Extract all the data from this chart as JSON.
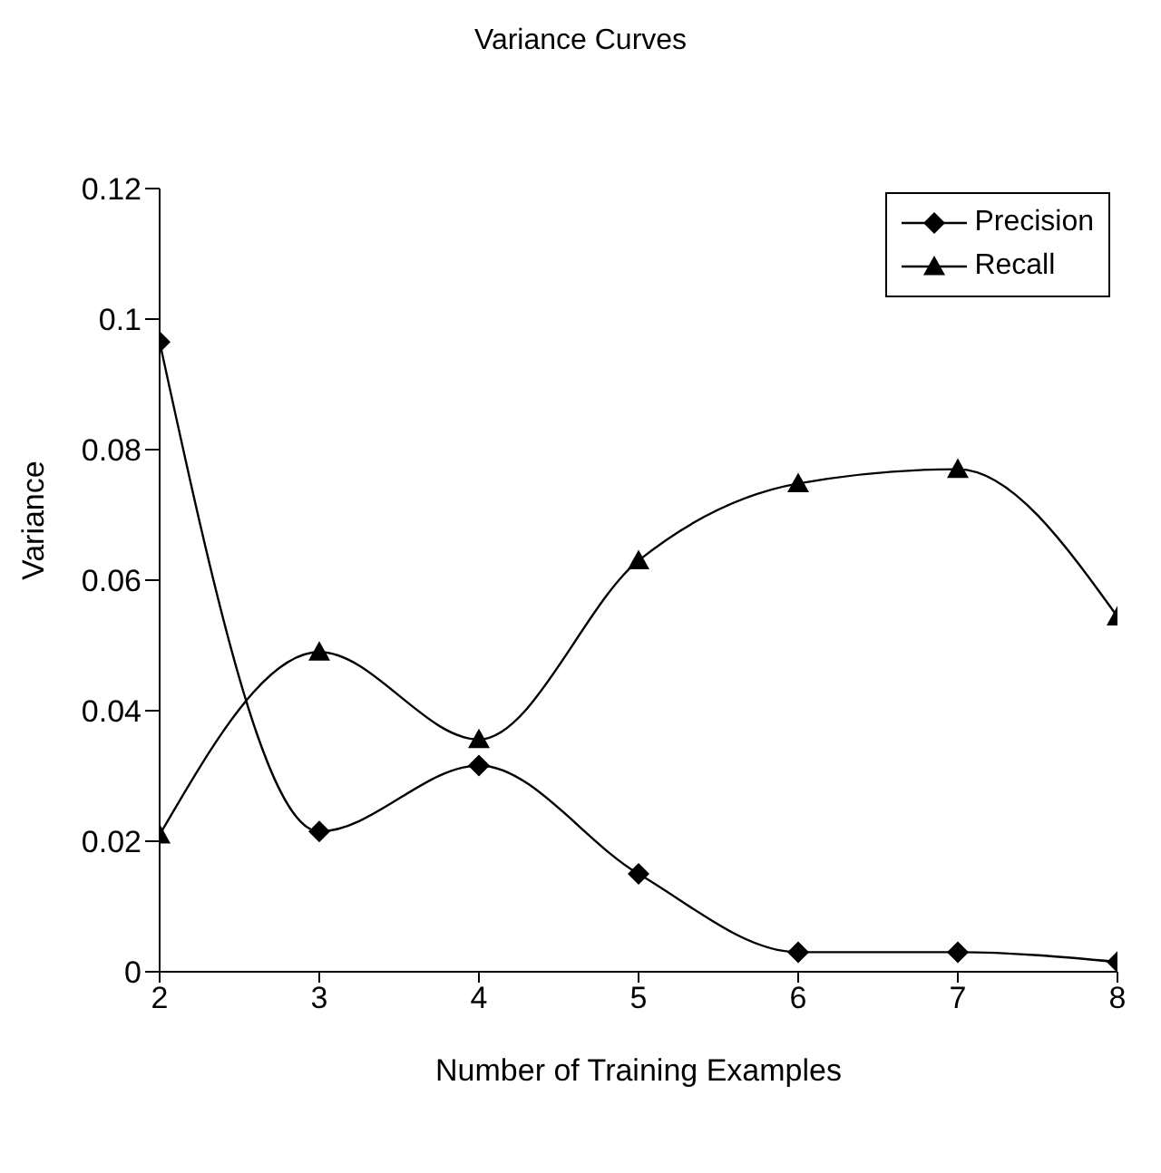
{
  "chart_data": {
    "type": "line",
    "title": "Variance Curves",
    "xlabel": "Number of Training Examples",
    "ylabel": "Variance",
    "x": [
      2,
      3,
      4,
      5,
      6,
      7,
      8
    ],
    "series": [
      {
        "name": "Precision",
        "color": "#000000",
        "marker": "diamond",
        "values": [
          0.0965,
          0.0215,
          0.0316,
          0.015,
          0.003,
          0.003,
          0.0015
        ]
      },
      {
        "name": "Recall",
        "color": "#000000",
        "marker": "triangle",
        "values": [
          0.021,
          0.049,
          0.0356,
          0.063,
          0.0748,
          0.077,
          0.0544
        ]
      }
    ],
    "xlim": [
      2,
      8
    ],
    "xticks": [
      2,
      3,
      4,
      5,
      6,
      7,
      8
    ],
    "ylim": [
      0,
      0.12
    ],
    "yticks": [
      0,
      0.02,
      0.04,
      0.06,
      0.08,
      0.1,
      0.12
    ],
    "grid": false,
    "legend": "top right",
    "line_style": "solid"
  }
}
